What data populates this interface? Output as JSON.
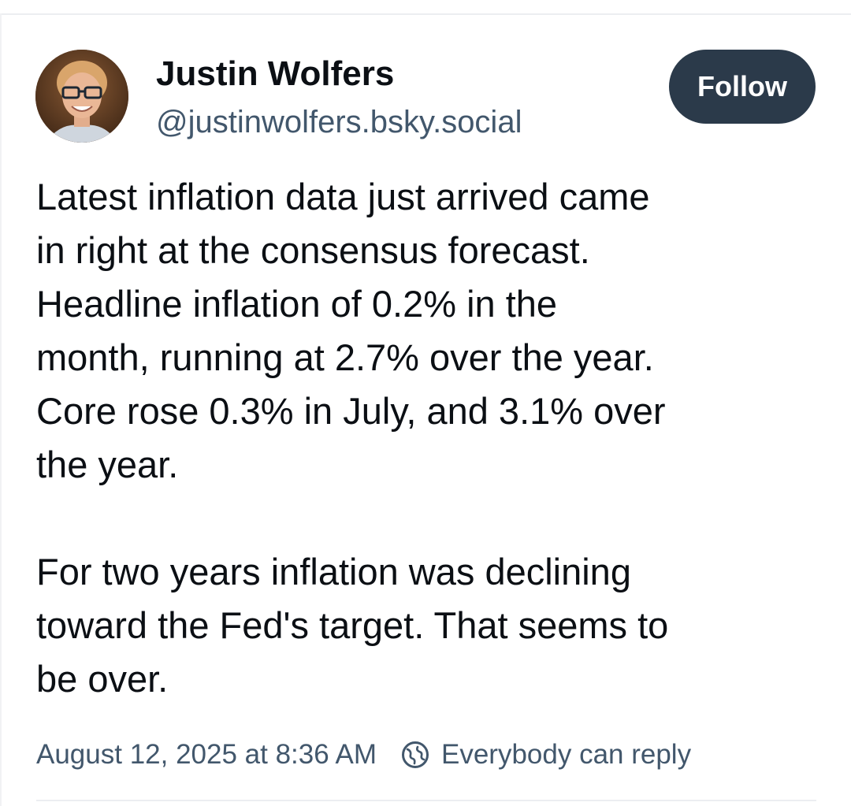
{
  "post": {
    "author": {
      "display_name": "Justin Wolfers",
      "handle": "@justinwolfers.bsky.social",
      "avatar_icon": "avatar-photo"
    },
    "follow_label": "Follow",
    "text_paragraphs": [
      "Latest inflation data just arrived came\nin right at the consensus forecast.\nHeadline inflation of 0.2% in the\nmonth, running at 2.7% over the year.\nCore rose 0.3% in July, and 3.1% over\nthe year.",
      "For two years inflation was declining\ntoward the Fed's target. That seems to\nbe over."
    ],
    "timestamp": "August 12, 2025 at 8:36 AM",
    "reply_setting": "Everybody can reply",
    "reply_icon": "globe-icon"
  },
  "colors": {
    "follow_bg": "#2b3a4a",
    "secondary_text": "#42576c",
    "primary_text": "#0b0f14"
  }
}
